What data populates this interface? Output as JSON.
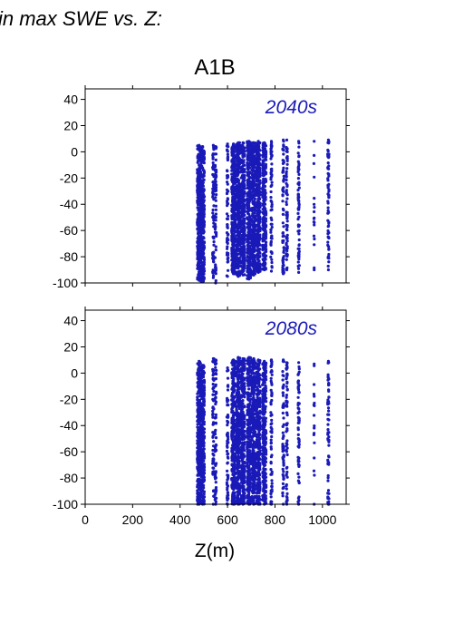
{
  "header": {
    "caption": "in max SWE vs. Z:"
  },
  "figure": {
    "scenario_title": "A1B",
    "marker_color": "#1a1ab8"
  },
  "chart_data": [
    {
      "type": "scatter",
      "panel_label": "2040s",
      "xlabel": "",
      "ylabel": "",
      "xlim": [
        0,
        1100
      ],
      "ylim": [
        -100,
        48
      ],
      "x_ticks": [
        0,
        200,
        400,
        600,
        800,
        1000
      ],
      "y_ticks": [
        40,
        20,
        0,
        -20,
        -40,
        -60,
        -80,
        -100
      ],
      "columns": [
        {
          "x": 480,
          "ymin": -98,
          "ymax": 5,
          "density": "dense"
        },
        {
          "x": 495,
          "ymin": -99,
          "ymax": 4,
          "density": "dense"
        },
        {
          "x": 540,
          "ymin": -96,
          "ymax": 5,
          "density": "medium"
        },
        {
          "x": 550,
          "ymin": -100,
          "ymax": 4,
          "density": "medium"
        },
        {
          "x": 600,
          "ymin": -95,
          "ymax": 6,
          "density": "medium"
        },
        {
          "x": 625,
          "ymin": -93,
          "ymax": 6,
          "density": "dense"
        },
        {
          "x": 645,
          "ymin": -95,
          "ymax": 7,
          "density": "dense"
        },
        {
          "x": 665,
          "ymin": -94,
          "ymax": 7,
          "density": "dense"
        },
        {
          "x": 690,
          "ymin": -97,
          "ymax": 8,
          "density": "dense"
        },
        {
          "x": 710,
          "ymin": -94,
          "ymax": 7,
          "density": "dense"
        },
        {
          "x": 730,
          "ymin": -92,
          "ymax": 8,
          "density": "dense"
        },
        {
          "x": 755,
          "ymin": -90,
          "ymax": 7,
          "density": "dense"
        },
        {
          "x": 785,
          "ymin": -91,
          "ymax": 8,
          "density": "medium"
        },
        {
          "x": 835,
          "ymin": -93,
          "ymax": 9,
          "density": "medium"
        },
        {
          "x": 850,
          "ymin": -90,
          "ymax": 9,
          "density": "medium"
        },
        {
          "x": 900,
          "ymin": -92,
          "ymax": 8,
          "density": "medium"
        },
        {
          "x": 965,
          "ymin": -90,
          "ymax": 8,
          "density": "sparse"
        },
        {
          "x": 1025,
          "ymin": -90,
          "ymax": 9,
          "density": "medium"
        }
      ]
    },
    {
      "type": "scatter",
      "panel_label": "2080s",
      "xlabel": "Z(m)",
      "ylabel": "",
      "xlim": [
        0,
        1100
      ],
      "ylim": [
        -100,
        48
      ],
      "x_ticks": [
        0,
        200,
        400,
        600,
        800,
        1000
      ],
      "y_ticks": [
        40,
        20,
        0,
        -20,
        -40,
        -60,
        -80,
        -100
      ],
      "columns": [
        {
          "x": 480,
          "ymin": -100,
          "ymax": 9,
          "density": "dense"
        },
        {
          "x": 495,
          "ymin": -100,
          "ymax": 6,
          "density": "dense"
        },
        {
          "x": 540,
          "ymin": -100,
          "ymax": 11,
          "density": "medium"
        },
        {
          "x": 550,
          "ymin": -100,
          "ymax": 10,
          "density": "medium"
        },
        {
          "x": 600,
          "ymin": -100,
          "ymax": 4,
          "density": "medium"
        },
        {
          "x": 625,
          "ymin": -100,
          "ymax": 10,
          "density": "dense"
        },
        {
          "x": 645,
          "ymin": -100,
          "ymax": 12,
          "density": "dense"
        },
        {
          "x": 665,
          "ymin": -100,
          "ymax": 11,
          "density": "dense"
        },
        {
          "x": 690,
          "ymin": -100,
          "ymax": 12,
          "density": "dense"
        },
        {
          "x": 710,
          "ymin": -100,
          "ymax": 11,
          "density": "dense"
        },
        {
          "x": 730,
          "ymin": -100,
          "ymax": 10,
          "density": "dense"
        },
        {
          "x": 755,
          "ymin": -100,
          "ymax": 9,
          "density": "dense"
        },
        {
          "x": 785,
          "ymin": -100,
          "ymax": 10,
          "density": "medium"
        },
        {
          "x": 835,
          "ymin": -100,
          "ymax": 10,
          "density": "medium"
        },
        {
          "x": 850,
          "ymin": -100,
          "ymax": 8,
          "density": "medium"
        },
        {
          "x": 900,
          "ymin": -100,
          "ymax": 8,
          "density": "medium"
        },
        {
          "x": 965,
          "ymin": -100,
          "ymax": 7,
          "density": "sparse"
        },
        {
          "x": 1025,
          "ymin": -100,
          "ymax": 9,
          "density": "medium"
        }
      ]
    }
  ]
}
